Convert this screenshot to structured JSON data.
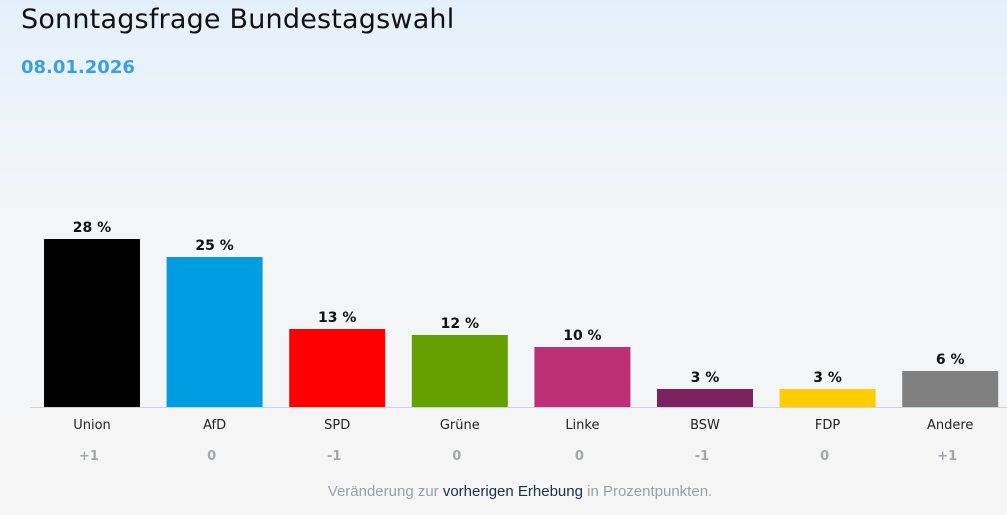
{
  "header": {
    "title": "Sonntagsfrage Bundestagswahl",
    "date": "08.01.2026"
  },
  "chart_data": {
    "type": "bar",
    "title": "Sonntagsfrage Bundestagswahl",
    "subtitle": "08.01.2026",
    "categories": [
      "Union",
      "AfD",
      "SPD",
      "Grüne",
      "Linke",
      "BSW",
      "FDP",
      "Andere"
    ],
    "values": [
      28,
      25,
      13,
      12,
      10,
      3,
      3,
      6
    ],
    "value_labels": [
      "28 %",
      "25 %",
      "13 %",
      "12 %",
      "10 %",
      "3 %",
      "3 %",
      "6 %"
    ],
    "changes": [
      "+1",
      "0",
      "-1",
      "0",
      "0",
      "-1",
      "0",
      "+1"
    ],
    "colors": [
      "#000000",
      "#009ee0",
      "#ff0000",
      "#64a000",
      "#be3075",
      "#7d2160",
      "#ffcc00",
      "#808080"
    ],
    "unit": "%",
    "ylim": [
      0,
      28
    ],
    "grid": false
  },
  "footer": {
    "note_prefix": "Veränderung zur ",
    "note_link": "vorherigen Erhebung",
    "note_suffix": " in Prozentpunkten."
  }
}
